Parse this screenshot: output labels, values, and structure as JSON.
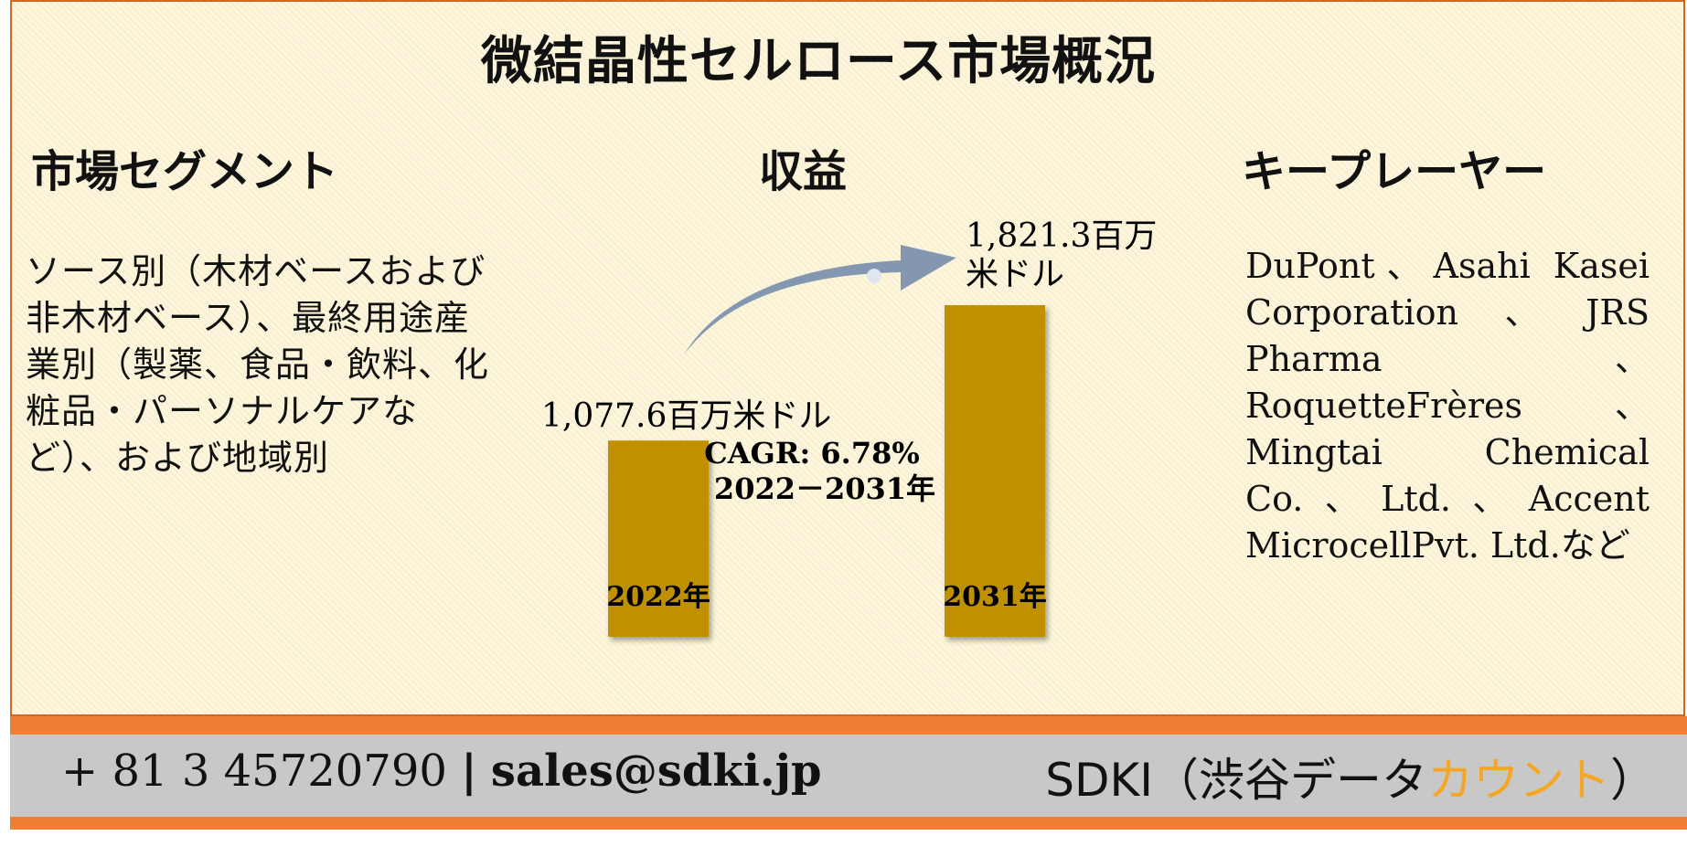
{
  "title": "微結晶性セルロース市場概況",
  "segment": {
    "heading": "市場セグメント",
    "text": "ソース別（木材ベースおよび非木材ベース）、最終用途産業別（製薬、食品・飲料、化粧品・パーソナルケアなど）、および地域別"
  },
  "revenue": {
    "heading": "収益"
  },
  "key_players": {
    "heading": "キープレーヤー",
    "text": "DuPont、Asahi Kasei Corporation、JRS Pharma、RoquetteFrères、Mingtai Chemical Co.、Ltd.、Accent MicrocellPvt. Ltd.など"
  },
  "chart_data": {
    "type": "bar",
    "categories": [
      "2022年",
      "2031年"
    ],
    "values": [
      1077.6,
      1821.3
    ],
    "value_labels": [
      "1,077.6百万米ドル",
      "1,821.3百万\n米ドル"
    ],
    "annotation_line1": "CAGR: 6.78%",
    "annotation_line2": "2022－2031年",
    "bar_color": "#bf9000",
    "arrow_color": "#8497b0"
  },
  "footer": {
    "phone": "+ 81 3 45720790",
    "separator": "|",
    "email": "sales@sdki.jp",
    "brand_prefix": "SDKI（渋谷データ",
    "brand_accent": "カウント",
    "brand_suffix": "）",
    "accent_color": "#f5a623",
    "strip_color": "#ef7f33"
  }
}
